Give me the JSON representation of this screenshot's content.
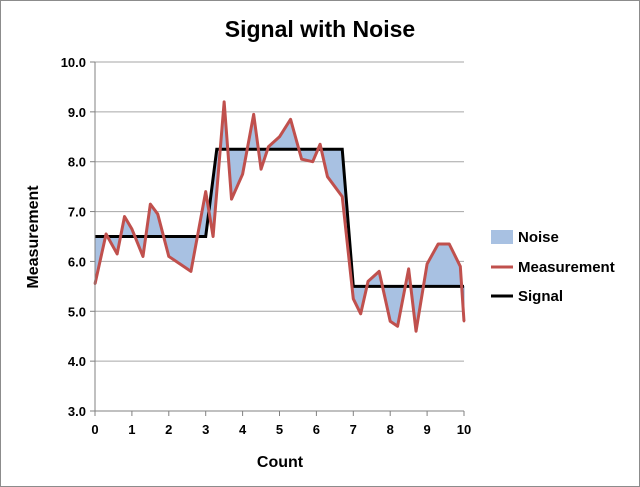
{
  "chart_data": {
    "type": "area",
    "title": "Signal with Noise",
    "xlabel": "Count",
    "ylabel": "Measurement",
    "xlim": [
      0,
      10
    ],
    "ylim": [
      3.0,
      10.0
    ],
    "x_ticks": [
      "0",
      "1",
      "2",
      "3",
      "4",
      "5",
      "6",
      "7",
      "8",
      "9",
      "10"
    ],
    "y_ticks": [
      "3.0",
      "4.0",
      "5.0",
      "6.0",
      "7.0",
      "8.0",
      "9.0",
      "10.0"
    ],
    "grid": "horizontal",
    "legend_position": "right",
    "legend": [
      "Noise",
      "Measurement",
      "Signal"
    ],
    "colors": {
      "noise_fill": "#a8c1e2",
      "noise_stroke": "#4f6f9f",
      "measurement": "#c0504d",
      "signal": "#000000",
      "grid": "#a6a6a6"
    },
    "series": [
      {
        "name": "Measurement",
        "x": [
          0,
          0.3,
          0.6,
          0.8,
          1.0,
          1.3,
          1.5,
          1.7,
          2.0,
          2.3,
          2.6,
          3.0,
          3.2,
          3.5,
          3.7,
          4.0,
          4.3,
          4.5,
          4.7,
          5.0,
          5.3,
          5.6,
          5.9,
          6.1,
          6.3,
          6.7,
          7.0,
          7.2,
          7.4,
          7.7,
          8.0,
          8.2,
          8.5,
          8.7,
          9.0,
          9.3,
          9.6,
          9.9,
          10.0
        ],
        "y": [
          5.55,
          6.55,
          6.15,
          6.9,
          6.65,
          6.1,
          7.15,
          6.95,
          6.1,
          5.95,
          5.8,
          7.4,
          6.5,
          9.2,
          7.25,
          7.75,
          8.95,
          7.85,
          8.3,
          8.5,
          8.85,
          8.05,
          8.0,
          8.35,
          7.7,
          7.3,
          5.25,
          4.95,
          5.6,
          5.8,
          4.8,
          4.7,
          5.85,
          4.6,
          5.95,
          6.35,
          6.35,
          5.9,
          4.8
        ]
      },
      {
        "name": "Signal",
        "x": [
          0,
          3.0,
          3.3,
          6.7,
          7.0,
          10.0
        ],
        "y": [
          6.5,
          6.5,
          8.25,
          8.25,
          5.5,
          5.5
        ]
      }
    ]
  }
}
